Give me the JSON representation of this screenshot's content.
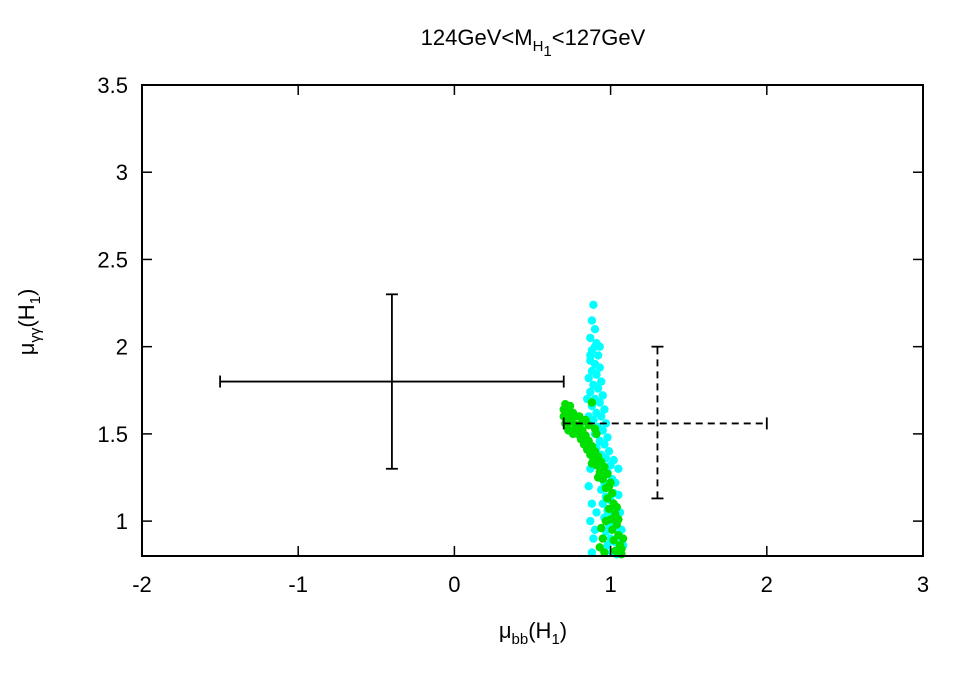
{
  "chart_data": {
    "type": "scatter",
    "title": {
      "pre": "124GeV<M",
      "sub1": "H",
      "sub2": "1",
      "post": "<127GeV"
    },
    "xlabel": {
      "mu": "μ",
      "sub": "bb",
      "post": "(H",
      "sub2": "1",
      "close": ")"
    },
    "ylabel": {
      "mu": "μ",
      "sub": "γγ",
      "post": "(H",
      "sub2": "1",
      "close": ")"
    },
    "xlim": [
      -2,
      3
    ],
    "ylim": [
      0.8,
      3.5
    ],
    "x_ticks": [
      -2,
      -1,
      0,
      1,
      2,
      3
    ],
    "x_tick_labels": [
      "-2",
      "-1",
      "0",
      "1",
      "2",
      "3"
    ],
    "y_ticks": [
      1,
      1.5,
      2,
      2.5,
      3,
      3.5
    ],
    "y_tick_labels": [
      "1",
      "1.5",
      "2",
      "2.5",
      "3",
      "3.5"
    ],
    "colors": {
      "cyan": "#00ffff",
      "green": "#00e000",
      "errorbar": "#000000"
    },
    "error_bars": [
      {
        "style": "solid",
        "x": -0.4,
        "y": 1.8,
        "x_low": -1.5,
        "x_high": 0.7,
        "y_low": 1.3,
        "y_high": 2.3
      },
      {
        "style": "dashed",
        "x": 1.3,
        "y": 1.56,
        "x_low": 0.7,
        "x_high": 2.0,
        "y_low": 1.13,
        "y_high": 2.0
      }
    ],
    "series": [
      {
        "color": "cyan",
        "points": [
          [
            0.89,
            2.24
          ],
          [
            0.88,
            2.15
          ],
          [
            0.9,
            2.1
          ],
          [
            0.87,
            2.05
          ],
          [
            0.91,
            2.02
          ],
          [
            0.88,
            1.98
          ],
          [
            0.92,
            1.95
          ],
          [
            0.87,
            1.92
          ],
          [
            0.9,
            1.9
          ],
          [
            0.93,
            1.88
          ],
          [
            0.88,
            1.86
          ],
          [
            0.91,
            1.84
          ],
          [
            0.86,
            1.82
          ],
          [
            0.94,
            1.8
          ],
          [
            0.89,
            1.78
          ],
          [
            0.92,
            1.76
          ],
          [
            0.87,
            1.74
          ],
          [
            0.95,
            1.72
          ],
          [
            0.9,
            1.7
          ],
          [
            0.93,
            1.68
          ],
          [
            0.88,
            1.66
          ],
          [
            0.96,
            1.64
          ],
          [
            0.91,
            1.62
          ],
          [
            0.94,
            1.6
          ],
          [
            0.89,
            1.58
          ],
          [
            0.97,
            1.56
          ],
          [
            0.92,
            1.54
          ],
          [
            0.95,
            1.52
          ],
          [
            0.9,
            1.5
          ],
          [
            0.98,
            1.48
          ],
          [
            0.93,
            1.46
          ],
          [
            0.96,
            1.44
          ],
          [
            0.91,
            1.42
          ],
          [
            0.99,
            1.4
          ],
          [
            0.94,
            1.38
          ],
          [
            0.97,
            1.36
          ],
          [
            0.92,
            1.34
          ],
          [
            1.0,
            1.32
          ],
          [
            0.95,
            1.3
          ],
          [
            0.98,
            1.28
          ],
          [
            0.93,
            1.26
          ],
          [
            1.01,
            1.24
          ],
          [
            0.96,
            1.22
          ],
          [
            0.99,
            1.2
          ],
          [
            0.94,
            1.18
          ],
          [
            1.02,
            1.16
          ],
          [
            0.97,
            1.14
          ],
          [
            1.0,
            1.12
          ],
          [
            0.95,
            1.1
          ],
          [
            1.03,
            1.08
          ],
          [
            0.98,
            1.06
          ],
          [
            1.01,
            1.04
          ],
          [
            0.96,
            1.02
          ],
          [
            1.04,
            1.0
          ],
          [
            0.99,
            0.98
          ],
          [
            1.02,
            0.96
          ],
          [
            0.97,
            0.94
          ],
          [
            1.05,
            0.92
          ],
          [
            1.0,
            0.9
          ],
          [
            1.03,
            0.88
          ],
          [
            0.98,
            0.86
          ],
          [
            1.06,
            0.84
          ],
          [
            1.01,
            0.82
          ],
          [
            1.04,
            0.81
          ],
          [
            0.87,
            1.3
          ],
          [
            0.86,
            1.2
          ],
          [
            0.88,
            1.1
          ],
          [
            0.87,
            1.0
          ],
          [
            0.89,
            0.9
          ],
          [
            0.88,
            0.82
          ],
          [
            0.9,
            0.95
          ],
          [
            0.91,
            1.05
          ],
          [
            0.86,
            1.6
          ],
          [
            0.85,
            1.7
          ],
          [
            0.9,
            2.0
          ],
          [
            0.87,
            1.95
          ],
          [
            1.05,
            1.15
          ],
          [
            1.06,
            1.05
          ],
          [
            1.07,
            0.95
          ],
          [
            1.08,
            0.86
          ],
          [
            1.03,
            1.22
          ],
          [
            1.05,
            1.3
          ],
          [
            1.02,
            1.35
          ],
          [
            0.93,
            2.0
          ]
        ]
      },
      {
        "color": "green",
        "points": [
          [
            0.71,
            1.67
          ],
          [
            0.7,
            1.64
          ],
          [
            0.72,
            1.62
          ],
          [
            0.7,
            1.6
          ],
          [
            0.73,
            1.58
          ],
          [
            0.71,
            1.56
          ],
          [
            0.74,
            1.66
          ],
          [
            0.76,
            1.62
          ],
          [
            0.78,
            1.6
          ],
          [
            0.75,
            1.57
          ],
          [
            0.8,
            1.55
          ],
          [
            0.77,
            1.53
          ],
          [
            0.82,
            1.52
          ],
          [
            0.79,
            1.5
          ],
          [
            0.84,
            1.49
          ],
          [
            0.81,
            1.47
          ],
          [
            0.86,
            1.46
          ],
          [
            0.83,
            1.44
          ],
          [
            0.88,
            1.43
          ],
          [
            0.85,
            1.41
          ],
          [
            0.9,
            1.4
          ],
          [
            0.87,
            1.38
          ],
          [
            0.92,
            1.37
          ],
          [
            0.89,
            1.35
          ],
          [
            0.94,
            1.34
          ],
          [
            0.91,
            1.32
          ],
          [
            0.96,
            1.31
          ],
          [
            0.93,
            1.28
          ],
          [
            0.98,
            1.27
          ],
          [
            0.95,
            1.24
          ],
          [
            1.0,
            1.22
          ],
          [
            0.97,
            1.19
          ],
          [
            1.01,
            1.16
          ],
          [
            0.98,
            1.13
          ],
          [
            1.02,
            1.1
          ],
          [
            0.99,
            1.07
          ],
          [
            1.03,
            1.04
          ],
          [
            1.0,
            1.01
          ],
          [
            1.04,
            0.98
          ],
          [
            1.01,
            0.95
          ],
          [
            1.05,
            0.92
          ],
          [
            1.02,
            0.89
          ],
          [
            1.06,
            0.86
          ],
          [
            1.03,
            0.83
          ],
          [
            1.07,
            0.81
          ],
          [
            0.95,
            0.9
          ],
          [
            0.93,
            0.85
          ],
          [
            0.96,
            0.82
          ],
          [
            0.94,
            0.96
          ],
          [
            0.97,
            1.0
          ],
          [
            0.75,
            1.6
          ],
          [
            0.73,
            1.52
          ],
          [
            0.78,
            1.55
          ],
          [
            0.82,
            1.57
          ],
          [
            0.86,
            1.55
          ],
          [
            0.91,
            1.5
          ],
          [
            0.9,
            1.53
          ],
          [
            0.88,
            1.68
          ],
          [
            0.99,
            1.2
          ],
          [
            1.04,
            1.08
          ],
          [
            1.05,
            1.01
          ],
          [
            1.08,
            0.9
          ],
          [
            1.07,
            0.84
          ],
          [
            0.92,
            1.25
          ],
          [
            0.88,
            1.33
          ],
          [
            0.76,
            1.5
          ],
          [
            0.72,
            1.55
          ],
          [
            0.74,
            1.63
          ],
          [
            0.8,
            1.6
          ],
          [
            0.84,
            1.58
          ]
        ]
      }
    ]
  }
}
